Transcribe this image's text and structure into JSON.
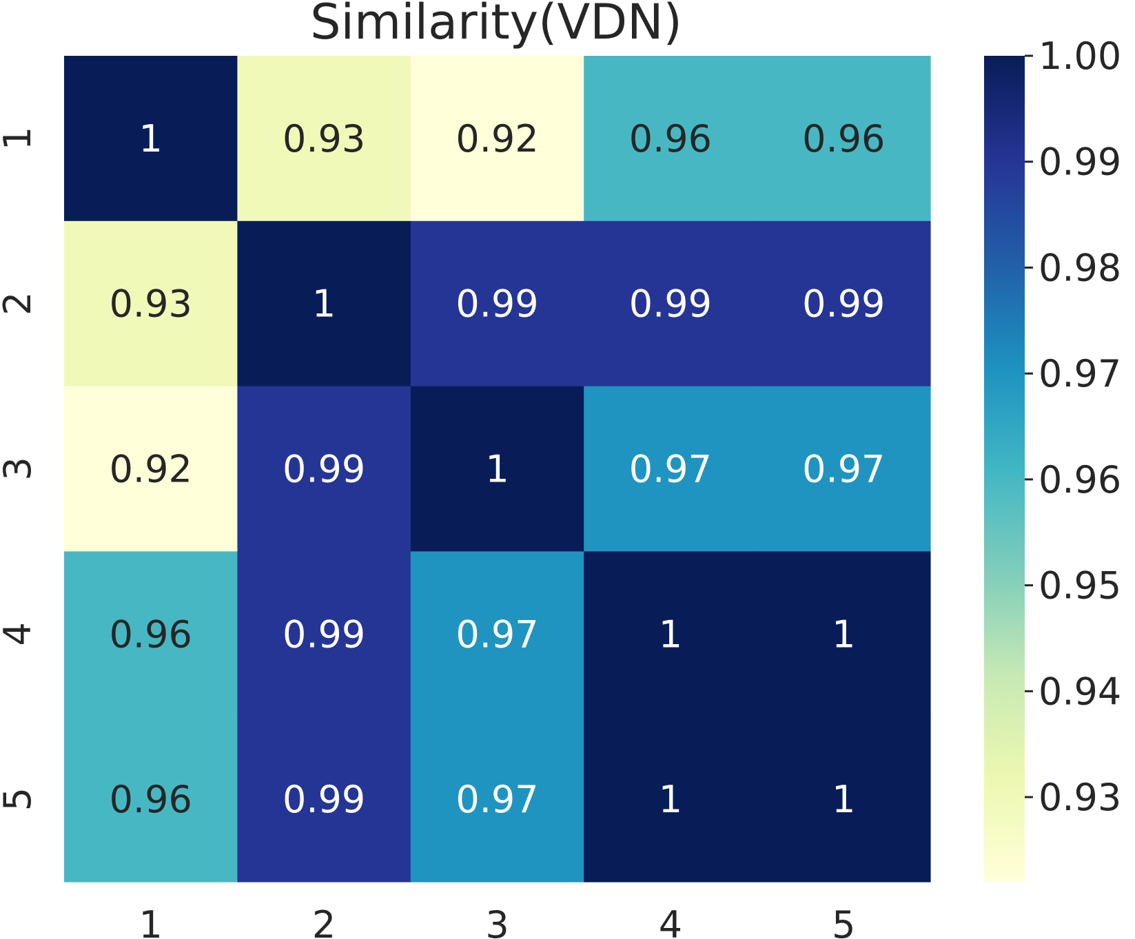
{
  "chart_data": {
    "type": "heatmap",
    "title": "Similarity(VDN)",
    "x_categories": [
      "1",
      "2",
      "3",
      "4",
      "5"
    ],
    "y_categories": [
      "1",
      "2",
      "3",
      "4",
      "5"
    ],
    "values": [
      [
        1.0,
        0.93,
        0.92,
        0.96,
        0.96
      ],
      [
        0.93,
        1.0,
        0.99,
        0.99,
        0.99
      ],
      [
        0.92,
        0.99,
        1.0,
        0.97,
        0.97
      ],
      [
        0.96,
        0.99,
        0.97,
        1.0,
        1.0
      ],
      [
        0.96,
        0.99,
        0.97,
        1.0,
        1.0
      ]
    ],
    "annotations": [
      [
        "1",
        "0.93",
        "0.92",
        "0.96",
        "0.96"
      ],
      [
        "0.93",
        "1",
        "0.99",
        "0.99",
        "0.99"
      ],
      [
        "0.92",
        "0.99",
        "1",
        "0.97",
        "0.97"
      ],
      [
        "0.96",
        "0.99",
        "0.97",
        "1",
        "1"
      ],
      [
        "0.96",
        "0.99",
        "0.97",
        "1",
        "1"
      ]
    ],
    "colormap": "YlGnBu",
    "colorbar": {
      "range": [
        0.922,
        1.0
      ],
      "ticks": [
        1.0,
        0.99,
        0.98,
        0.97,
        0.96,
        0.95,
        0.94,
        0.93
      ],
      "tick_labels": [
        "1.00",
        "0.99",
        "0.98",
        "0.97",
        "0.96",
        "0.95",
        "0.94",
        "0.93"
      ],
      "placement": "right"
    },
    "colormap_stops": [
      "#ffffd9",
      "#edf8b1",
      "#c7e9b4",
      "#7fcdbb",
      "#41b6c4",
      "#1d91c0",
      "#225ea8",
      "#253494",
      "#081d58"
    ],
    "annotation_colors": {
      "light_bg": "#262626",
      "dark_bg": "#ffffff"
    }
  }
}
